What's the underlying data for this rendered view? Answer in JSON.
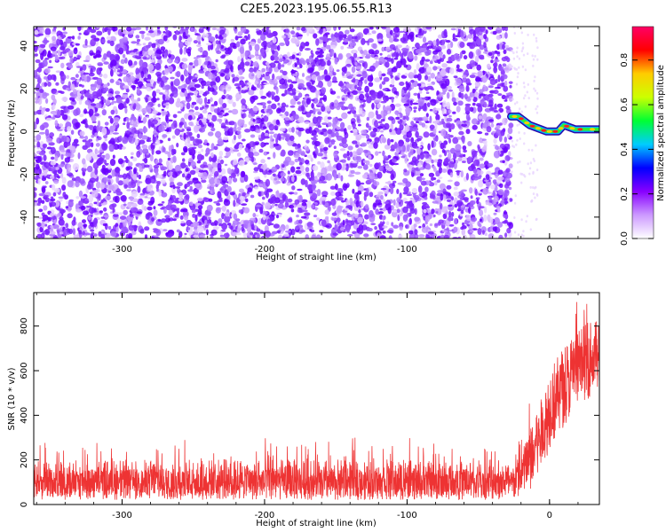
{
  "title": "C2E5.2023.195.06.55.R13",
  "chart_data": [
    {
      "type": "heatmap",
      "xlabel": "Height of straight line (km)",
      "ylabel": "Frequency (Hz)",
      "xlim": [
        -362,
        35
      ],
      "ylim": [
        -50,
        49
      ],
      "xticks": [
        -300,
        -200,
        -100,
        0
      ],
      "yticks": [
        -40,
        -20,
        0,
        20,
        40
      ],
      "xtick_labels": [
        "-300",
        "-200",
        "-100",
        "0"
      ],
      "ytick_labels": [
        "-40",
        "-20",
        "0",
        "20",
        "40"
      ],
      "noise_region_x": [
        -362,
        -27
      ],
      "signal_trace": [
        {
          "x": -27,
          "y": 7
        },
        {
          "x": -22,
          "y": 7
        },
        {
          "x": -18,
          "y": 5
        },
        {
          "x": -14,
          "y": 3
        },
        {
          "x": -10,
          "y": 2
        },
        {
          "x": -6,
          "y": 1
        },
        {
          "x": -2,
          "y": 0
        },
        {
          "x": 2,
          "y": 0
        },
        {
          "x": 6,
          "y": 0
        },
        {
          "x": 10,
          "y": 3
        },
        {
          "x": 14,
          "y": 2
        },
        {
          "x": 18,
          "y": 1
        },
        {
          "x": 25,
          "y": 1
        },
        {
          "x": 35,
          "y": 1
        }
      ],
      "colorbar": {
        "label": "Normalized spectral amplitude",
        "ticks": [
          0.0,
          0.2,
          0.4,
          0.6,
          0.8
        ],
        "tick_labels": [
          "0.0",
          "0.2",
          "0.4",
          "0.6",
          "0.8"
        ],
        "range": [
          0,
          0.95
        ],
        "colors": [
          "#ffffff",
          "#cc99ff",
          "#8800ff",
          "#0000ff",
          "#00ccff",
          "#00ff33",
          "#ccff00",
          "#ffcc00",
          "#ff0000",
          "#ff0066"
        ]
      }
    },
    {
      "type": "line",
      "xlabel": "Height of straight line (km)",
      "ylabel": "SNR (10 * v/v)",
      "xlim": [
        -362,
        35
      ],
      "ylim": [
        0,
        950
      ],
      "xticks": [
        -300,
        -200,
        -100,
        0
      ],
      "yticks": [
        0,
        200,
        400,
        600,
        800
      ],
      "xtick_labels": [
        "-300",
        "-200",
        "-100",
        "0"
      ],
      "ytick_labels": [
        "0",
        "200",
        "400",
        "600",
        "800"
      ],
      "series": [
        {
          "color": "#ee3333",
          "envelope": [
            {
              "x": -362,
              "low": 20,
              "mid": 120,
              "high": 280
            },
            {
              "x": -300,
              "low": 20,
              "mid": 120,
              "high": 290
            },
            {
              "x": -200,
              "low": 20,
              "mid": 120,
              "high": 300
            },
            {
              "x": -100,
              "low": 20,
              "mid": 115,
              "high": 300
            },
            {
              "x": -25,
              "low": 20,
              "mid": 115,
              "high": 250
            },
            {
              "x": -20,
              "low": 40,
              "mid": 150,
              "high": 330
            },
            {
              "x": -15,
              "low": 50,
              "mid": 230,
              "high": 480
            },
            {
              "x": -10,
              "low": 80,
              "mid": 300,
              "high": 560
            },
            {
              "x": -5,
              "low": 150,
              "mid": 380,
              "high": 650
            },
            {
              "x": 0,
              "low": 250,
              "mid": 450,
              "high": 780
            },
            {
              "x": 10,
              "low": 350,
              "mid": 560,
              "high": 880
            },
            {
              "x": 20,
              "low": 450,
              "mid": 650,
              "high": 930
            },
            {
              "x": 35,
              "low": 500,
              "mid": 700,
              "high": 940
            }
          ]
        }
      ]
    }
  ]
}
